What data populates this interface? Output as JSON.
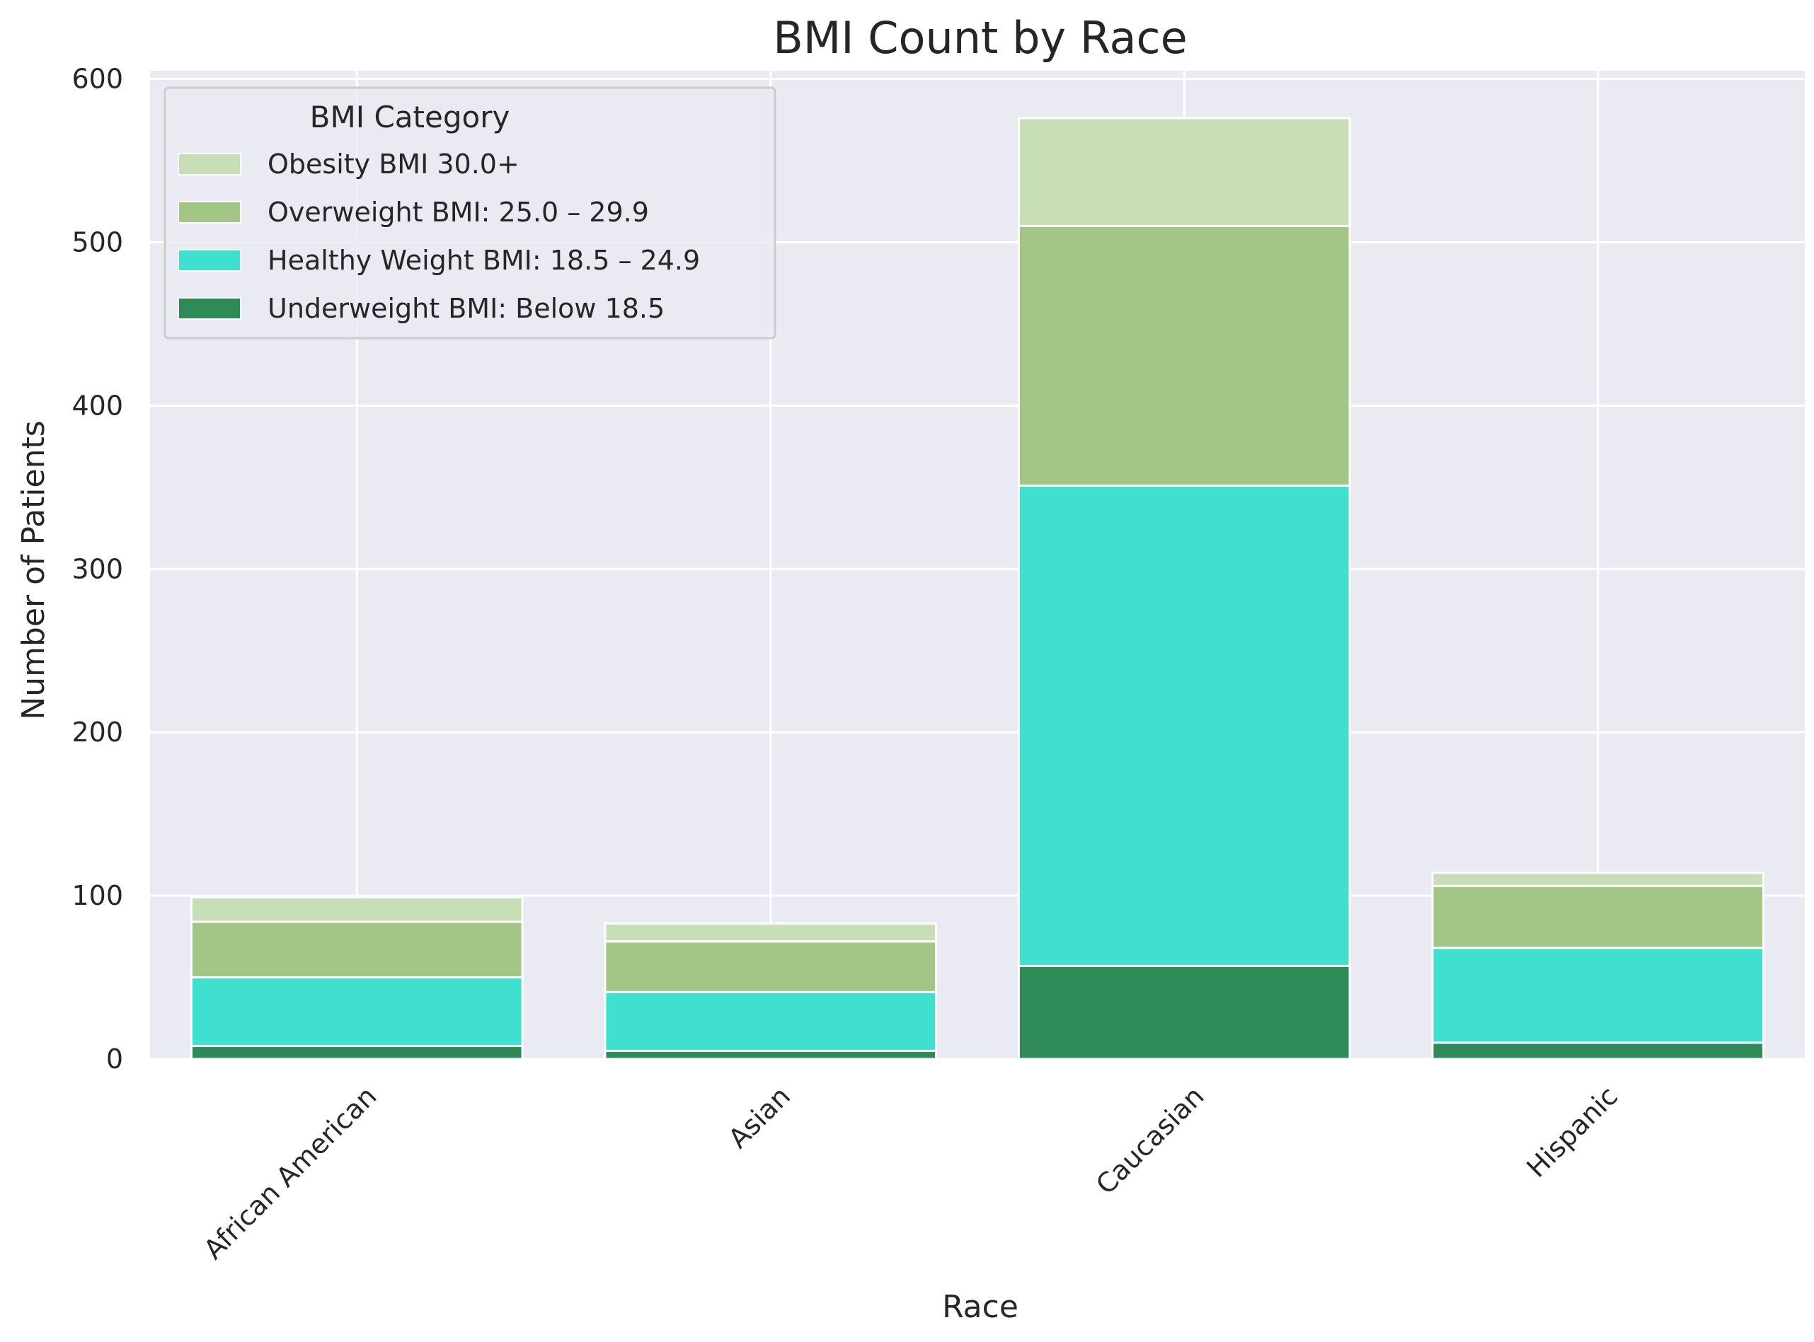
{
  "chart_data": {
    "type": "bar",
    "stacked": true,
    "title": "BMI Count by Race",
    "xlabel": "Race",
    "ylabel": "Number of Patients",
    "categories": [
      "African American",
      "Asian",
      "Caucasian",
      "Hispanic"
    ],
    "ylim": [
      0,
      605
    ],
    "yticks": [
      0,
      100,
      200,
      300,
      400,
      500,
      600
    ],
    "grid": true,
    "legend": {
      "title": "BMI Category",
      "placement": "top-left"
    },
    "series": [
      {
        "name": "Underweight BMI: Below 18.5",
        "color": "#2e8b57",
        "values": [
          8,
          5,
          57,
          10
        ]
      },
      {
        "name": "Healthy Weight BMI: 18.5 – 24.9",
        "color": "#40e0d0",
        "values": [
          42,
          36,
          294,
          58
        ]
      },
      {
        "name": "Overweight BMI: 25.0 – 29.9",
        "color": "#a3c686",
        "values": [
          34,
          31,
          159,
          38
        ]
      },
      {
        "name": "Obesity BMI 30.0+",
        "color": "#c8deb7",
        "values": [
          15,
          11,
          66,
          8
        ]
      }
    ],
    "legend_order": [
      3,
      2,
      1,
      0
    ],
    "background_color": "#eaeaf2"
  }
}
